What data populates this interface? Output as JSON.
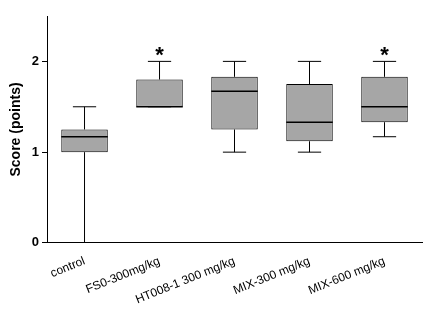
{
  "chart_data": {
    "type": "boxplot",
    "y_label": "Score (points)",
    "categories": [
      "control",
      "FS0-300mg/kg",
      "HT008-1 300 mg/kg",
      "MIX-300 mg/kg",
      "MIX-600 mg/kg"
    ],
    "min": [
      0,
      1.5,
      1.0,
      1.0,
      1.17
    ],
    "q1": [
      1.0,
      1.5,
      1.25,
      1.12,
      1.33
    ],
    "median": [
      1.17,
      1.5,
      1.67,
      1.33,
      1.5
    ],
    "q3": [
      1.25,
      1.8,
      1.83,
      1.75,
      1.83
    ],
    "max": [
      1.5,
      2.0,
      2.0,
      2.0,
      2.0
    ],
    "annotations": [
      null,
      "*",
      null,
      null,
      "*"
    ],
    "color": "#a6a6a6",
    "ylim": [
      0,
      2.5
    ],
    "yticks": [
      0,
      1,
      2
    ],
    "grid": false
  }
}
